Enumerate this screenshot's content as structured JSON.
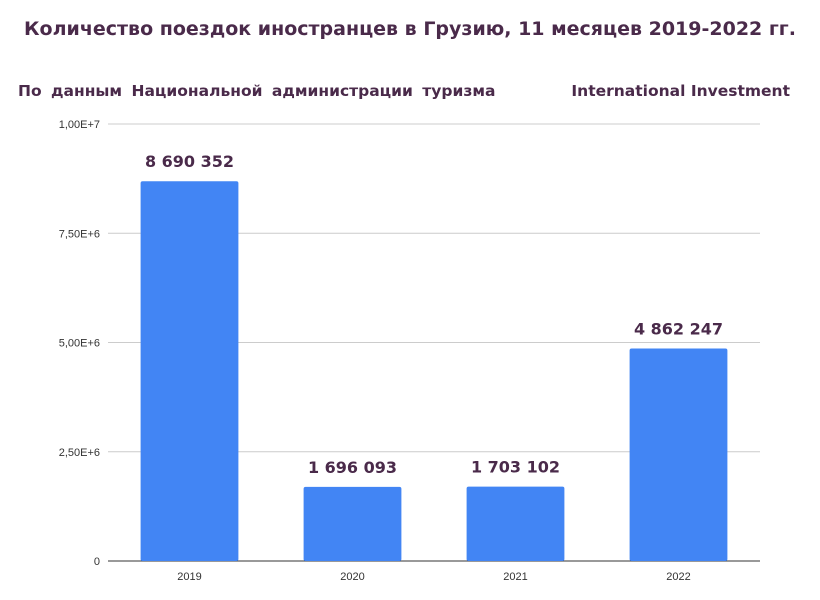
{
  "header": {
    "title": "Количество поездок иностранцев в Грузию, 11 месяцев 2019-2022 гг.",
    "source_left": "По  данным  Национальной  администрации  туризма",
    "source_right": "International Investment"
  },
  "colors": {
    "bar": "#4285f4",
    "title": "#4a2a4a",
    "grid": "#cccccc"
  },
  "chart_data": {
    "type": "bar",
    "categories": [
      "2019",
      "2020",
      "2021",
      "2022"
    ],
    "values": [
      8690352,
      1696093,
      1703102,
      4862247
    ],
    "value_labels": [
      "8 690 352",
      "1 696 093",
      "1 703 102",
      "4 862 247"
    ],
    "title": "Количество поездок иностранцев в Грузию, 11 месяцев 2019-2022 гг.",
    "xlabel": "",
    "ylabel": "",
    "ylim": [
      0,
      10000000
    ],
    "yticks": [
      0,
      2500000,
      5000000,
      7500000,
      10000000
    ],
    "ytick_labels": [
      "0",
      "2,50E+6",
      "5,00E+6",
      "7,50E+6",
      "1,00E+7"
    ],
    "grid": true
  }
}
